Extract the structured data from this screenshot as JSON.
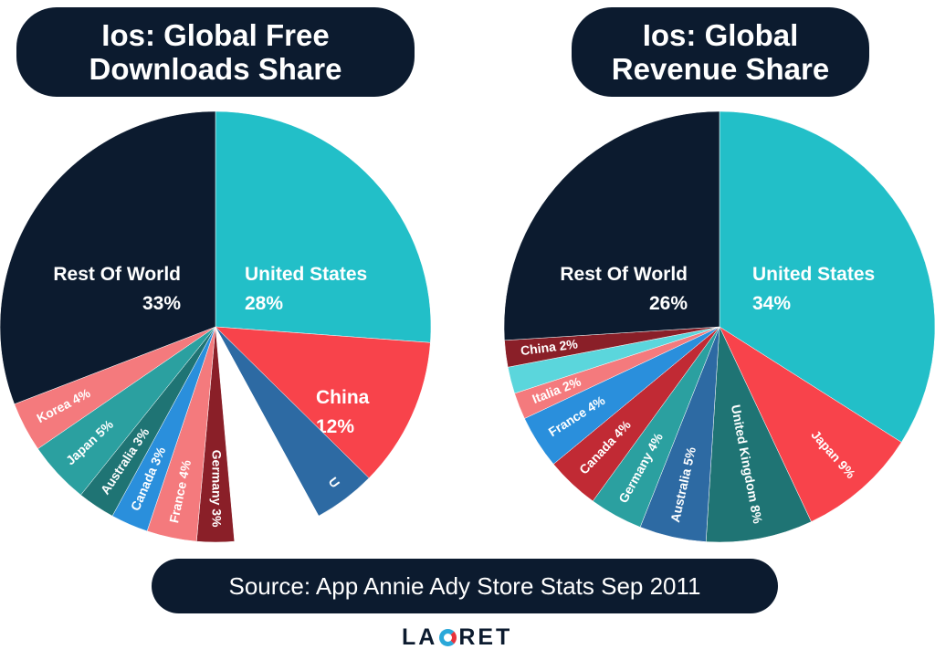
{
  "titles": {
    "left": [
      "Ios: Global Free",
      "Downloads Share"
    ],
    "right": [
      "Ios: Global",
      "Revenue Share"
    ]
  },
  "source": "Source: App Annie Ady Store Stats Sep 2011",
  "logo": {
    "part1": "LA",
    "part2": "RET"
  },
  "colors": {
    "navy": "#0c1b2f",
    "teal": "#22bfc8",
    "red": "#f8434b",
    "pink": "#f47a7d",
    "lightteal": "#2ba0a0",
    "darkteal": "#1f7474",
    "blue": "#2a8fdc",
    "maroon": "#8a1f28",
    "steel": "#2d6aa3",
    "crimson": "#c12a34",
    "cyan": "#5bd6dc",
    "white": "#ffffff"
  },
  "chart_data": [
    {
      "type": "pie",
      "title": "Ios: Global Free Downloads Share",
      "slices": [
        {
          "label": "United States",
          "value": 28,
          "display": "28%",
          "color": "#22bfc8"
        },
        {
          "label": "China",
          "value": 12,
          "display": "12%",
          "color": "#f8434b"
        },
        {
          "label": "U",
          "value": 5,
          "display": "",
          "color": "#2d6aa3"
        },
        {
          "label": "",
          "value": 7,
          "display": "",
          "color": "#ffffff"
        },
        {
          "label": "Germany",
          "value": 3,
          "display": "3%",
          "color": "#8a1f28"
        },
        {
          "label": "France",
          "value": 4,
          "display": "4%",
          "color": "#f47a7d"
        },
        {
          "label": "Canada",
          "value": 3,
          "display": "3%",
          "color": "#2a8fdc"
        },
        {
          "label": "Australia",
          "value": 3,
          "display": "3%",
          "color": "#1f7474"
        },
        {
          "label": "Japan",
          "value": 5,
          "display": "5%",
          "color": "#2ba0a0"
        },
        {
          "label": "Korea",
          "value": 4,
          "display": "4%",
          "color": "#f47a7d"
        },
        {
          "label": "Rest Of World",
          "value": 33,
          "display": "33%",
          "color": "#0c1b2f"
        }
      ]
    },
    {
      "type": "pie",
      "title": "Ios: Global Revenue Share",
      "slices": [
        {
          "label": "United States",
          "value": 34,
          "display": "34%",
          "color": "#22bfc8"
        },
        {
          "label": "Japan",
          "value": 9,
          "display": "9%",
          "color": "#f8434b"
        },
        {
          "label": "United Kingdom",
          "value": 8,
          "display": "8%",
          "color": "#1f7474"
        },
        {
          "label": "Australia",
          "value": 5,
          "display": "5%",
          "color": "#2d6aa3"
        },
        {
          "label": "Germany",
          "value": 4,
          "display": "4%",
          "color": "#2ba0a0"
        },
        {
          "label": "Canada",
          "value": 4,
          "display": "4%",
          "color": "#c12a34"
        },
        {
          "label": "France",
          "value": 4,
          "display": "4%",
          "color": "#2a8fdc"
        },
        {
          "label": "Italia",
          "value": 2,
          "display": "2%",
          "color": "#f47a7d"
        },
        {
          "label": "",
          "value": 2,
          "display": "",
          "color": "#5bd6dc"
        },
        {
          "label": "China",
          "value": 2,
          "display": "2%",
          "color": "#8a1f28"
        },
        {
          "label": "Rest Of World",
          "value": 26,
          "display": "26%",
          "color": "#0c1b2f"
        }
      ]
    }
  ]
}
